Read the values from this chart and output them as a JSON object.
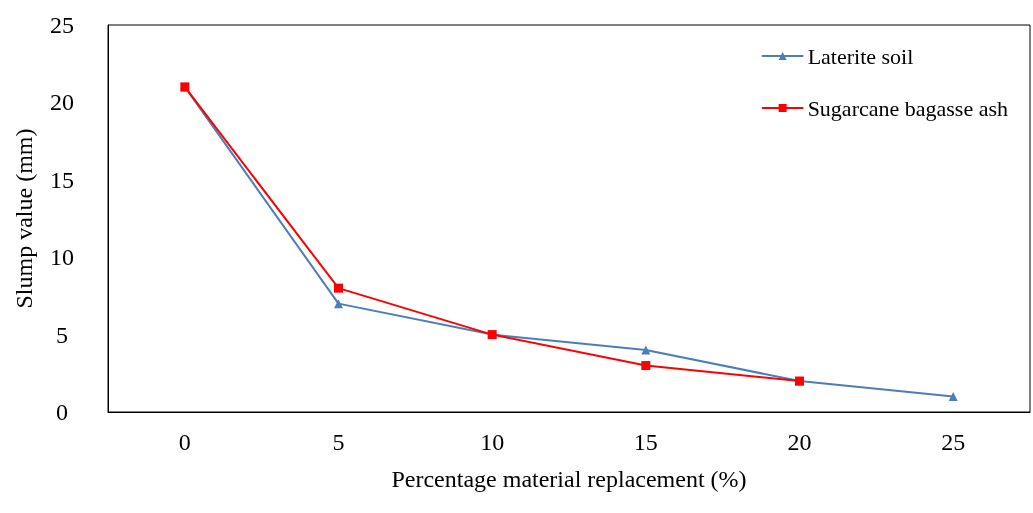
{
  "chart_data": {
    "type": "line",
    "xlabel": "Percentage material replacement (%)",
    "ylabel": "Slump value (mm)",
    "categories": [
      "0",
      "5",
      "10",
      "15",
      "20",
      "25"
    ],
    "series": [
      {
        "name": "Laterite soil",
        "color": "#4a7ebb",
        "marker": "triangle",
        "values": [
          21,
          7,
          5,
          4,
          2,
          1
        ]
      },
      {
        "name": "Sugarcane bagasse ash",
        "color": "#ff0000",
        "marker": "square",
        "values": [
          21,
          8,
          5,
          3,
          2,
          null
        ]
      }
    ],
    "ylim": [
      0,
      25
    ],
    "yticks": [
      0,
      5,
      10,
      15,
      20,
      25
    ],
    "grid": false,
    "legend": "top right",
    "line_style": "solid"
  }
}
